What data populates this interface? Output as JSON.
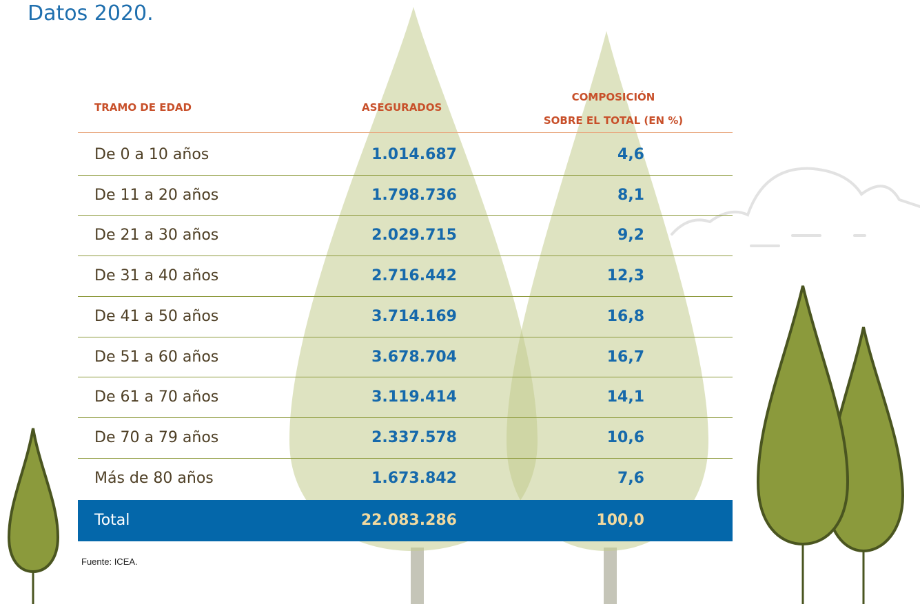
{
  "title": "Datos 2020.",
  "table": {
    "columns": [
      "TRAMO DE EDAD",
      "ASEGURADOS",
      [
        "COMPOSICIÓN",
        "SOBRE EL TOTAL (EN %)"
      ]
    ],
    "rows": [
      [
        "De 0 a 10 años",
        "1.014.687",
        "4,6"
      ],
      [
        "De 11 a 20 años",
        "1.798.736",
        "8,1"
      ],
      [
        "De 21 a 30 años",
        "2.029.715",
        "9,2"
      ],
      [
        "De 31 a 40 años",
        "2.716.442",
        "12,3"
      ],
      [
        "De 41 a 50 años",
        "3.714.169",
        "16,8"
      ],
      [
        "De 51 a 60 años",
        "3.678.704",
        "16,7"
      ],
      [
        "De 61 a 70 años",
        "3.119.414",
        "14,1"
      ],
      [
        "De 70 a 79 años",
        "2.337.578",
        "10,6"
      ],
      [
        "Más de 80 años",
        "1.673.842",
        "7,6"
      ]
    ],
    "total": [
      "Total",
      "22.083.286",
      "100,0"
    ]
  },
  "source": "Fuente: ICEA."
}
